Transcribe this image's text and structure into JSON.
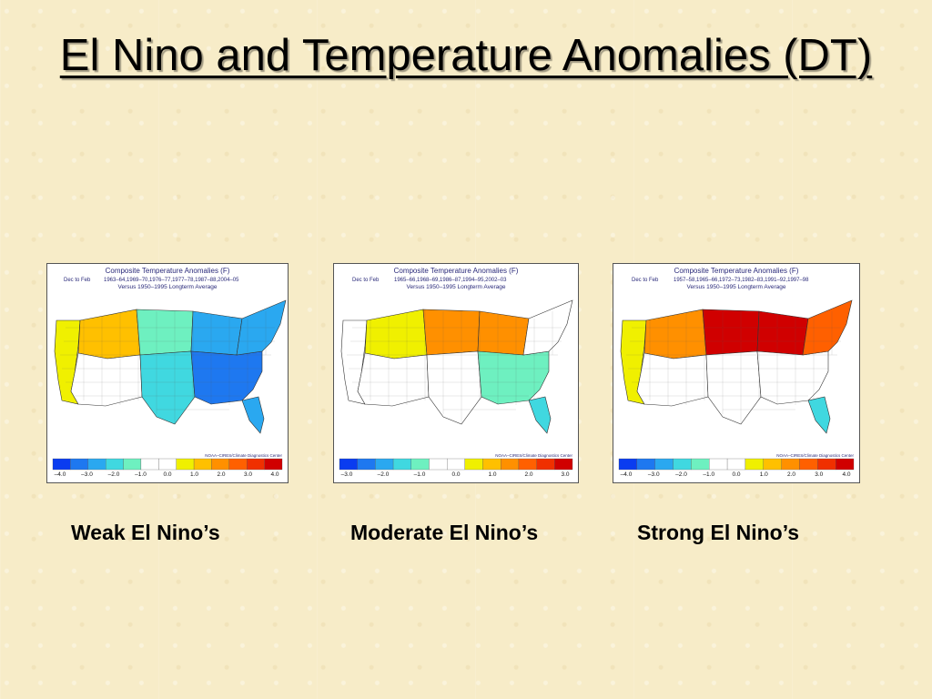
{
  "slide": {
    "title": "El Nino and Temperature Anomalies (DT)"
  },
  "colors": {
    "background": "#f7ecc8",
    "title": "#000000",
    "scale": [
      "#0a3cf0",
      "#1e78f0",
      "#2aa8f0",
      "#40d8e0",
      "#6ef0c0",
      "#ffffff",
      "#ffffff",
      "#f0f000",
      "#ffc000",
      "#ff9000",
      "#ff6000",
      "#f03000",
      "#d00000"
    ]
  },
  "maps": [
    {
      "map_title": "Composite Temperature Anomalies (F)",
      "period_label": "Dec to Feb",
      "years": "1963–64,1969–70,1976–77,1977–78,1987–88,2004–05",
      "baseline": "Versus 1950–1995 Longterm Average",
      "credit": "NOAA–CIRES/Climate Diagnostics Center",
      "scale_ticks": [
        "–4.0",
        "–3.0",
        "–2.0",
        "–1.0",
        "0.0",
        "1.0",
        "2.0",
        "3.0",
        "4.0"
      ],
      "caption": "Weak El Nino’s",
      "regions": {
        "west_coast": 1.2,
        "northwest": 1.5,
        "southwest": 0.3,
        "northern_plains": -1.0,
        "southern_plains": -1.3,
        "midwest": -1.8,
        "southeast": -2.5,
        "northeast": -2.0,
        "florida": -1.6
      }
    },
    {
      "map_title": "Composite Temperature Anomalies (F)",
      "period_label": "Dec to Feb",
      "years": "1965–66,1968–69,1986–87,1994–95,2002–03",
      "baseline": "Versus 1950–1995 Longterm Average",
      "credit": "NOAA–CIRES/Climate Diagnostics Center",
      "scale_ticks": [
        "–3.0",
        "–2.0",
        "–1.0",
        "0.0",
        "1.0",
        "2.0",
        "3.0"
      ],
      "caption": "Moderate El Nino’s",
      "regions": {
        "west_coast": 0.3,
        "northwest": 1.3,
        "southwest": 0.8,
        "northern_plains": 2.2,
        "southern_plains": 0.6,
        "midwest": 2.0,
        "southeast": -0.6,
        "northeast": 0.6,
        "florida": -1.2
      }
    },
    {
      "map_title": "Composite Temperature Anomalies (F)",
      "period_label": "Dec to Feb",
      "years": "1957–58,1965–66,1972–73,1982–83,1991–92,1997–98",
      "baseline": "Versus 1950–1995 Longterm Average",
      "credit": "NOAA–CIRES/Climate Diagnostics Center",
      "scale_ticks": [
        "–4.0",
        "–3.0",
        "–2.0",
        "–1.0",
        "0.0",
        "1.0",
        "2.0",
        "3.0",
        "4.0"
      ],
      "caption": "Strong El Nino’s",
      "regions": {
        "west_coast": 1.3,
        "northwest": 2.0,
        "southwest": 0.4,
        "northern_plains": 4.0,
        "southern_plains": 0.4,
        "midwest": 3.6,
        "southeast": -0.4,
        "northeast": 2.6,
        "florida": -1.3
      }
    }
  ]
}
